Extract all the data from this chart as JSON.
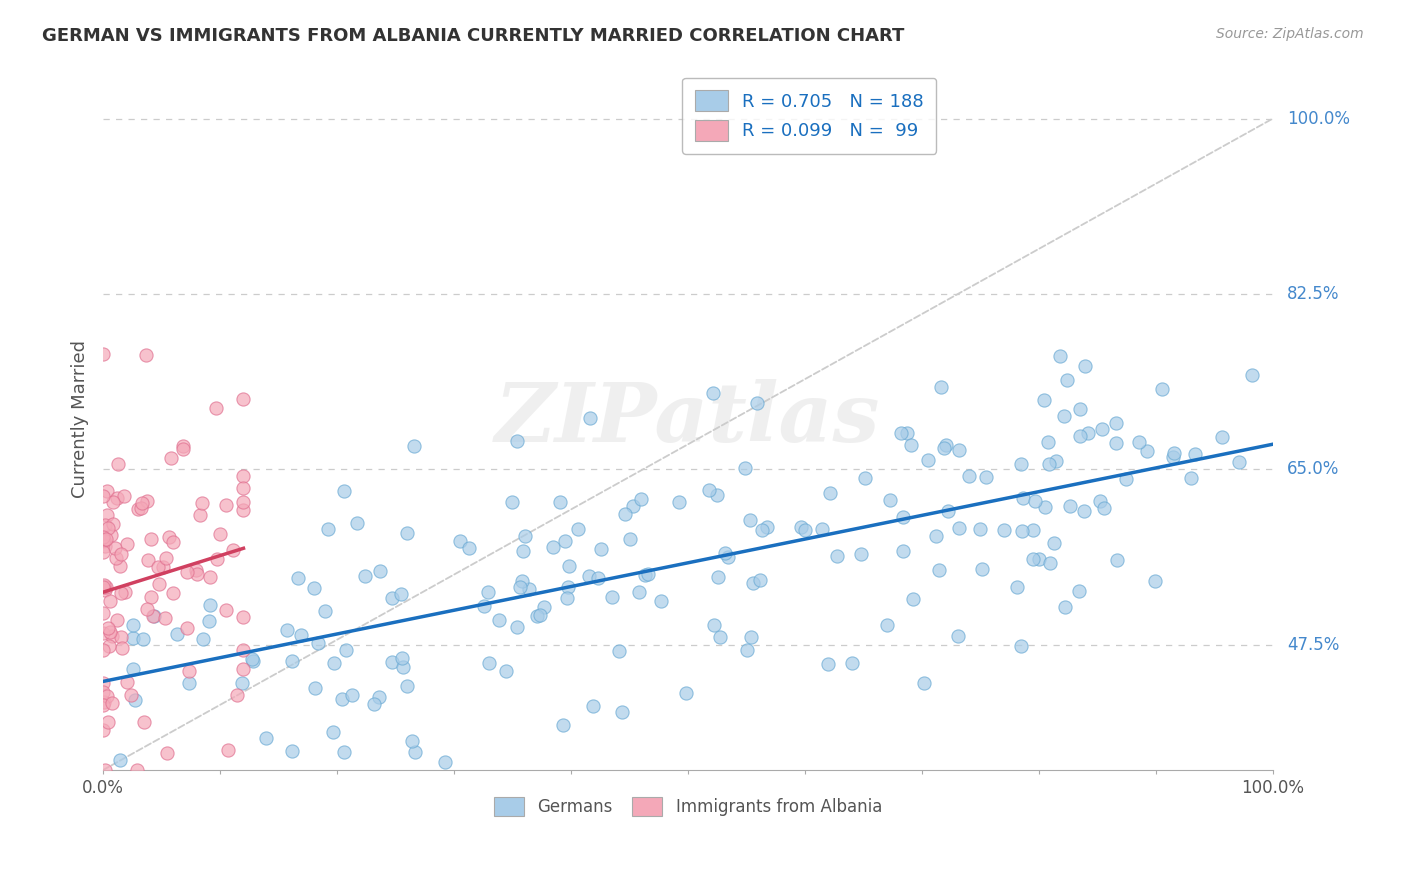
{
  "title": "GERMAN VS IMMIGRANTS FROM ALBANIA CURRENTLY MARRIED CORRELATION CHART",
  "source": "Source: ZipAtlas.com",
  "ylabel": "Currently Married",
  "watermark": "ZIPatlas",
  "xlim": [
    0.0,
    1.0
  ],
  "ylim": [
    0.35,
    1.05
  ],
  "xticks": [
    0.0,
    0.1,
    0.2,
    0.3,
    0.4,
    0.5,
    0.6,
    0.7,
    0.8,
    0.9,
    1.0
  ],
  "xtick_labels": [
    "0.0%",
    "",
    "",
    "",
    "",
    "",
    "",
    "",
    "",
    "",
    "100.0%"
  ],
  "ytick_labels": [
    "47.5%",
    "65.0%",
    "82.5%",
    "100.0%"
  ],
  "yticks": [
    0.475,
    0.65,
    0.825,
    1.0
  ],
  "blue_R": 0.705,
  "blue_N": 188,
  "pink_R": 0.099,
  "pink_N": 99,
  "blue_color": "#a8cce8",
  "pink_color": "#f4a8b8",
  "blue_edge_color": "#6aaad4",
  "pink_edge_color": "#e07090",
  "blue_line_color": "#1a6fbf",
  "pink_line_color": "#d04060",
  "diag_color": "#cccccc",
  "background_color": "#ffffff",
  "grid_color": "#cccccc",
  "title_color": "#333333",
  "legend_R_color": "#1a6fbf",
  "ytick_color": "#4488cc",
  "xtick_color": "#555555",
  "ylabel_color": "#555555",
  "legend_box_color": "#aaaaaa",
  "blue_legend_face": "#a8cce8",
  "pink_legend_face": "#f4a8b8"
}
